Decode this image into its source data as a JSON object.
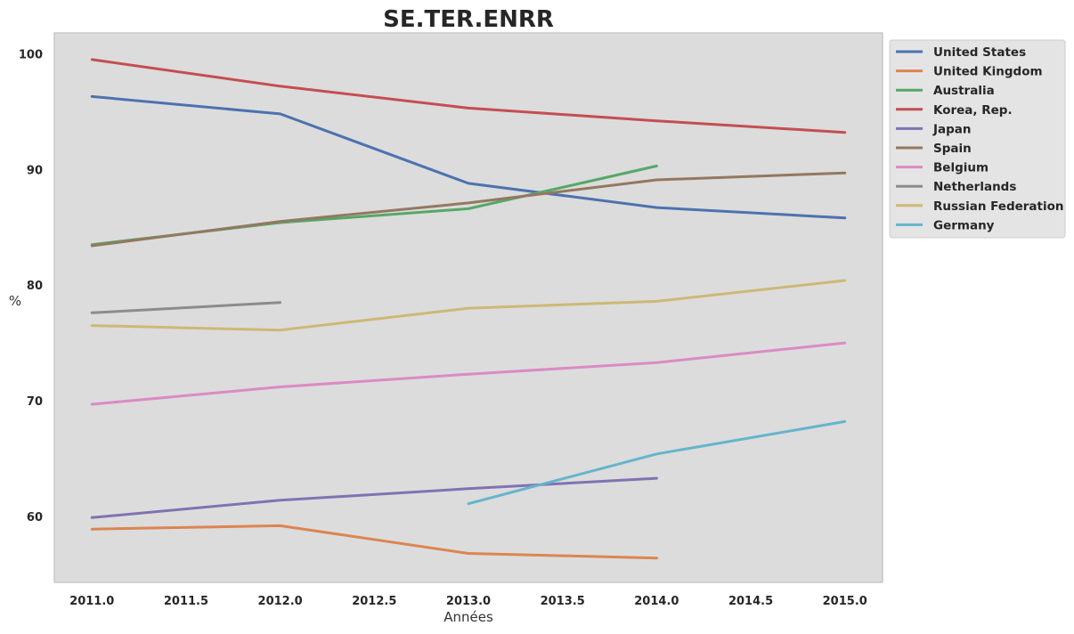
{
  "chart_data": {
    "type": "line",
    "title": "SE.TER.ENRR",
    "xlabel": "Années",
    "ylabel": "%",
    "xlim": [
      2010.8,
      2015.2
    ],
    "ylim": [
      54.3,
      101.8
    ],
    "xticks": [
      2011.0,
      2011.5,
      2012.0,
      2012.5,
      2013.0,
      2013.5,
      2014.0,
      2014.5,
      2015.0
    ],
    "xtick_labels": [
      "2011.0",
      "2011.5",
      "2012.0",
      "2012.5",
      "2013.0",
      "2013.5",
      "2014.0",
      "2014.5",
      "2015.0"
    ],
    "yticks": [
      60,
      70,
      80,
      90,
      100
    ],
    "ytick_labels": [
      "60",
      "70",
      "80",
      "90",
      "100"
    ],
    "grid": false,
    "legend_position": "outside-top-right",
    "background": "#dcdcdc",
    "series": [
      {
        "name": "United States",
        "color": "#4c72b0",
        "x": [
          2011,
          2012,
          2013,
          2014,
          2015
        ],
        "y": [
          96.3,
          94.8,
          88.8,
          86.7,
          85.8
        ]
      },
      {
        "name": "United Kingdom",
        "color": "#dd8452",
        "x": [
          2011,
          2012,
          2013,
          2014
        ],
        "y": [
          58.9,
          59.2,
          56.8,
          56.4
        ]
      },
      {
        "name": "Australia",
        "color": "#55a868",
        "x": [
          2011,
          2012,
          2013,
          2014
        ],
        "y": [
          83.5,
          85.4,
          86.6,
          90.3
        ]
      },
      {
        "name": "Korea, Rep.",
        "color": "#c44e52",
        "x": [
          2011,
          2012,
          2013,
          2014,
          2015
        ],
        "y": [
          99.5,
          97.2,
          95.3,
          94.2,
          93.2
        ]
      },
      {
        "name": "Japan",
        "color": "#8172b3",
        "x": [
          2011,
          2012,
          2013,
          2014
        ],
        "y": [
          59.9,
          61.4,
          62.4,
          63.3
        ]
      },
      {
        "name": "Spain",
        "color": "#937860",
        "x": [
          2011,
          2012,
          2013,
          2014,
          2015
        ],
        "y": [
          83.4,
          85.5,
          87.1,
          89.1,
          89.7
        ]
      },
      {
        "name": "Belgium",
        "color": "#da8bc3",
        "x": [
          2011,
          2012,
          2013,
          2014,
          2015
        ],
        "y": [
          69.7,
          71.2,
          72.3,
          73.3,
          75.0
        ]
      },
      {
        "name": "Netherlands",
        "color": "#8c8c8c",
        "x": [
          2011,
          2012
        ],
        "y": [
          77.6,
          78.5
        ]
      },
      {
        "name": "Russian Federation",
        "color": "#ccb974",
        "x": [
          2011,
          2012,
          2013,
          2014,
          2015
        ],
        "y": [
          76.5,
          76.1,
          78.0,
          78.6,
          80.4
        ]
      },
      {
        "name": "Germany",
        "color": "#64b5cd",
        "x": [
          2013,
          2014,
          2015
        ],
        "y": [
          61.1,
          65.4,
          68.2
        ]
      }
    ]
  }
}
